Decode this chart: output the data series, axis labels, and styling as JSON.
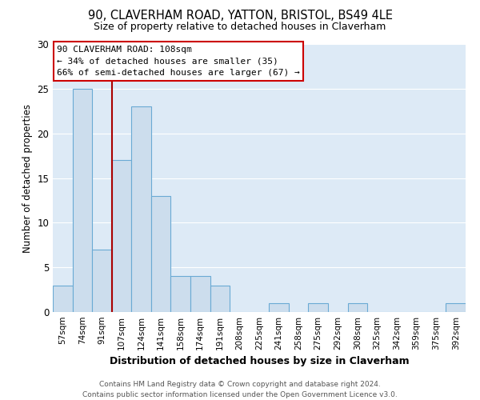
{
  "title": "90, CLAVERHAM ROAD, YATTON, BRISTOL, BS49 4LE",
  "subtitle": "Size of property relative to detached houses in Claverham",
  "xlabel": "Distribution of detached houses by size in Claverham",
  "ylabel": "Number of detached properties",
  "bin_labels": [
    "57sqm",
    "74sqm",
    "91sqm",
    "107sqm",
    "124sqm",
    "141sqm",
    "158sqm",
    "174sqm",
    "191sqm",
    "208sqm",
    "225sqm",
    "241sqm",
    "258sqm",
    "275sqm",
    "292sqm",
    "308sqm",
    "325sqm",
    "342sqm",
    "359sqm",
    "375sqm",
    "392sqm"
  ],
  "bin_values": [
    3,
    25,
    7,
    17,
    23,
    13,
    4,
    4,
    3,
    0,
    0,
    1,
    0,
    1,
    0,
    1,
    0,
    0,
    0,
    0,
    1
  ],
  "bar_color": "#ccdded",
  "bar_edge_color": "#6aaad4",
  "vline_color": "#aa0000",
  "ylim": [
    0,
    30
  ],
  "yticks": [
    0,
    5,
    10,
    15,
    20,
    25,
    30
  ],
  "annotation_title": "90 CLAVERHAM ROAD: 108sqm",
  "annotation_line1": "← 34% of detached houses are smaller (35)",
  "annotation_line2": "66% of semi-detached houses are larger (67) →",
  "annotation_box_color": "#ffffff",
  "annotation_box_edge": "#cc0000",
  "footer_line1": "Contains HM Land Registry data © Crown copyright and database right 2024.",
  "footer_line2": "Contains public sector information licensed under the Open Government Licence v3.0.",
  "background_color": "#ffffff",
  "plot_bg_color": "#ddeaf6",
  "grid_color": "#ffffff",
  "title_fontsize": 10.5,
  "subtitle_fontsize": 9,
  "ylabel_fontsize": 8.5,
  "xlabel_fontsize": 9,
  "tick_fontsize": 7.5,
  "annotation_fontsize": 8,
  "footer_fontsize": 6.5
}
